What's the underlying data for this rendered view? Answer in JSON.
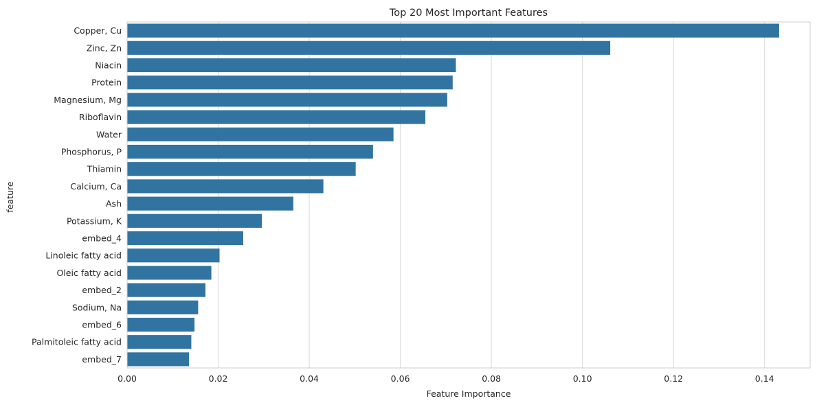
{
  "chart_data": {
    "type": "bar",
    "orientation": "horizontal",
    "title": "Top 20 Most Important Features",
    "xlabel": "Feature Importance",
    "ylabel": "feature",
    "xlim": [
      0,
      0.15
    ],
    "xticks": [
      0.0,
      0.02,
      0.04,
      0.06,
      0.08,
      0.1,
      0.12,
      0.14
    ],
    "xtick_labels": [
      "0.00",
      "0.02",
      "0.04",
      "0.06",
      "0.08",
      "0.10",
      "0.12",
      "0.14"
    ],
    "grid": true,
    "bar_color": "#3274a1",
    "categories": [
      "Copper, Cu",
      "Zinc, Zn",
      "Niacin",
      "Protein",
      "Magnesium, Mg",
      "Riboflavin",
      "Water",
      "Phosphorus, P",
      "Thiamin",
      "Calcium, Ca",
      "Ash",
      "Potassium, K",
      "embed_4",
      "Linoleic fatty acid",
      "Oleic fatty acid",
      "embed_2",
      "Sodium, Na",
      "embed_6",
      "Palmitoleic fatty acid",
      "embed_7"
    ],
    "values": [
      0.1432,
      0.1061,
      0.0722,
      0.0715,
      0.0703,
      0.0655,
      0.0585,
      0.054,
      0.0502,
      0.0431,
      0.0365,
      0.0296,
      0.0255,
      0.0203,
      0.0185,
      0.0172,
      0.0156,
      0.0148,
      0.0141,
      0.0136
    ]
  }
}
